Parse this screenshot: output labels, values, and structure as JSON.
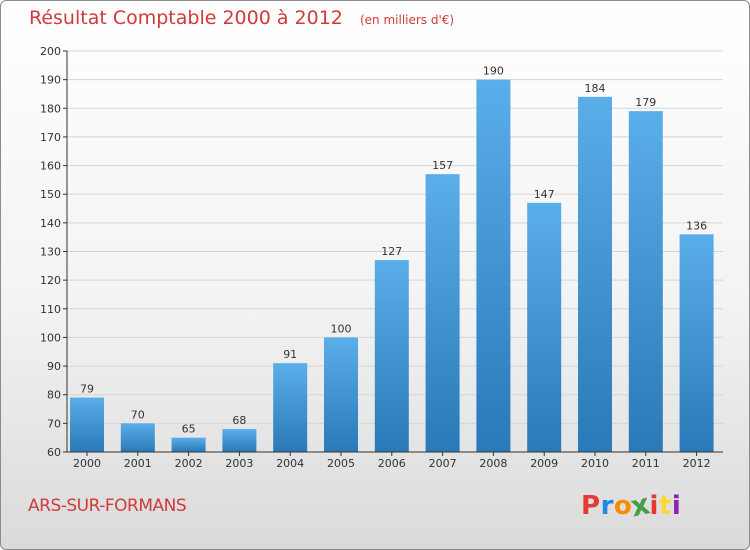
{
  "header": {
    "title": "Résultat Comptable 2000 à 2012",
    "unit": "(en milliers d'€)"
  },
  "footer": {
    "commune": "ARS-SUR-FORMANS",
    "logo_letters": [
      "P",
      "r",
      "o",
      "x",
      "i",
      "t",
      "i"
    ],
    "logo_colors": [
      "#e53935",
      "#1e88e5",
      "#fb8c00",
      "#43a047",
      "#e53935",
      "#fdd835",
      "#8e24aa"
    ]
  },
  "colors": {
    "bar_top": "#5aaeea",
    "bar_bottom": "#2a79b8",
    "axis": "#333333",
    "grid": "#d6d6d6",
    "title": "#d13a3a"
  },
  "chart_data": {
    "type": "bar",
    "title": "Résultat Comptable 2000 à 2012",
    "ylabel": "(en milliers d'€)",
    "xlabel": "",
    "categories": [
      "2000",
      "2001",
      "2002",
      "2003",
      "2004",
      "2005",
      "2006",
      "2007",
      "2008",
      "2009",
      "2010",
      "2011",
      "2012"
    ],
    "values": [
      79,
      70,
      65,
      68,
      91,
      100,
      127,
      157,
      190,
      147,
      184,
      179,
      136
    ],
    "ylim": [
      60,
      200
    ],
    "yticks": [
      60,
      70,
      80,
      90,
      100,
      110,
      120,
      130,
      140,
      150,
      160,
      170,
      180,
      190,
      200
    ],
    "grid": true
  }
}
